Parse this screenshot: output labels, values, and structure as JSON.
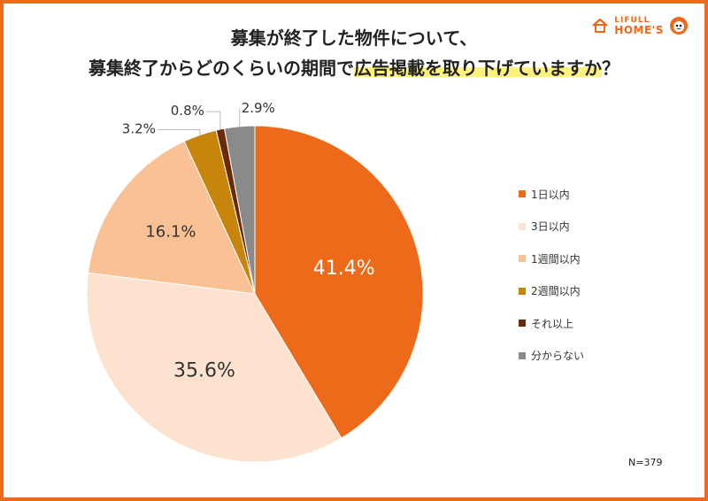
{
  "title_line1": "募集が終了した物件について、",
  "title_line2_plain": "募集終了からどのくらいの期間で",
  "title_line2_highlight": "広告掲載を取り下げていますか",
  "title_line2_mark": "？",
  "logo": {
    "line1": "LIFULL",
    "line2": "HOME'S"
  },
  "n_label": "N=379",
  "chart_data": {
    "type": "pie",
    "slices": [
      {
        "label": "1日以内",
        "value": 41.4,
        "value_label": "41.4%",
        "color": "#ec6a1a"
      },
      {
        "label": "3日以内",
        "value": 35.6,
        "value_label": "35.6%",
        "color": "#fde3cf"
      },
      {
        "label": "1週間以内",
        "value": 16.1,
        "value_label": "16.1%",
        "color": "#fac294"
      },
      {
        "label": "2週間以内",
        "value": 3.2,
        "value_label": "3.2%",
        "color": "#c8850b"
      },
      {
        "label": "それ以上",
        "value": 0.8,
        "value_label": "0.8%",
        "color": "#6b2a0a"
      },
      {
        "label": "分からない",
        "value": 2.9,
        "value_label": "2.9%",
        "color": "#8a8a8a"
      }
    ],
    "start": "12 o'clock",
    "direction": "clockwise",
    "legend_position": "right"
  }
}
